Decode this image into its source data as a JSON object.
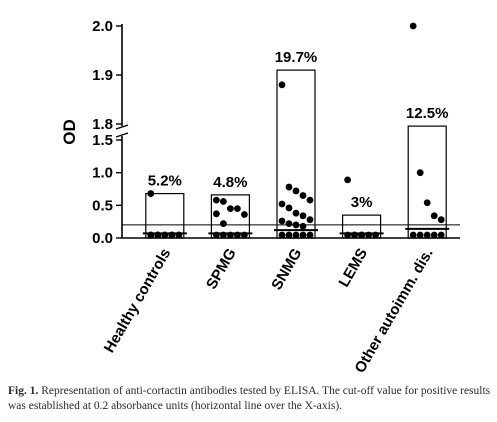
{
  "chart_data": {
    "type": "scatter",
    "ylabel": "OD",
    "y_axis_break": {
      "lower_range": [
        0,
        1.5
      ],
      "upper_range": [
        1.8,
        2.0
      ]
    },
    "y_ticks_lower": [
      "0.0",
      "0.5",
      "1.0",
      "1.5"
    ],
    "y_ticks_upper": [
      "1.8",
      "1.9",
      "2.0"
    ],
    "cutoff": 0.2,
    "categories": [
      "Healthy controls",
      "SPMG",
      "SNMG",
      "LEMS",
      "Other autoimm. dis."
    ],
    "percent_labels": [
      "5.2%",
      "4.8%",
      "19.7%",
      "3%",
      "12.5%"
    ],
    "bar_heights": [
      0.68,
      0.66,
      1.91,
      0.35,
      1.76
    ],
    "medians": [
      0.07,
      0.07,
      0.12,
      0.07,
      0.14
    ],
    "points": [
      [
        0.68,
        0.05,
        0.05,
        0.05,
        0.05,
        0.05,
        0.05,
        0.05,
        0.05,
        0.05,
        0.05,
        0.05
      ],
      [
        0.58,
        0.56,
        0.45,
        0.45,
        0.36,
        0.37,
        0.22,
        0.06,
        0.06,
        0.06,
        0.06,
        0.06
      ],
      [
        1.88,
        0.78,
        0.72,
        0.65,
        0.58,
        0.52,
        0.46,
        0.38,
        0.34,
        0.28,
        0.26,
        0.22,
        0.2,
        0.18,
        0.06,
        0.06,
        0.06,
        0.06,
        0.06
      ],
      [
        0.89,
        0.05,
        0.05,
        0.05,
        0.05,
        0.05,
        0.05,
        0.05
      ],
      [
        2.0,
        1.0,
        0.54,
        0.34,
        0.28,
        0.06,
        0.06,
        0.06,
        0.06,
        0.06
      ]
    ]
  },
  "caption": {
    "fig_label": "Fig. 1.",
    "text": " Representation of anti-cortactin antibodies tested by ELISA. The cut-off value for positive results was established at 0.2 absorbance units (horizontal line over the X-axis)."
  }
}
